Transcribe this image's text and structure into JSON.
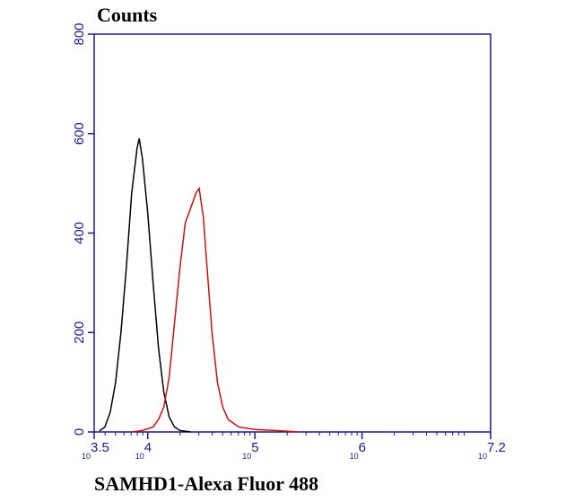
{
  "chart_data": {
    "type": "line",
    "title": "Counts",
    "x_label": "SAMHD1-Alexa Fluor 488",
    "xscale": "log",
    "tick_base": "10",
    "xlim": [
      3162.28,
      15848932
    ],
    "xticks": [
      {
        "value": 3162.28,
        "label": "3.5"
      },
      {
        "value": 10000,
        "label": "4"
      },
      {
        "value": 100000,
        "label": "5"
      },
      {
        "value": 1000000,
        "label": "6"
      },
      {
        "value": 15848932,
        "label": "7.2"
      }
    ],
    "ylim": [
      0,
      800
    ],
    "yticks": [
      0,
      200,
      400,
      600,
      800
    ],
    "series": [
      {
        "color": "#000000",
        "x": [
          3548,
          3981,
          4467,
          5012,
          5623,
          6310,
          7079,
          7943,
          8318,
          8913,
          10000,
          11220,
          12589,
          14125,
          15849,
          17783,
          19953,
          25119
        ],
        "values": [
          2,
          10,
          40,
          100,
          200,
          330,
          480,
          570,
          590,
          550,
          440,
          300,
          170,
          80,
          30,
          10,
          3,
          0
        ]
      },
      {
        "color": "#cc1111",
        "x": [
          7079,
          8913,
          11220,
          12589,
          14125,
          15849,
          17783,
          19953,
          22387,
          25119,
          28184,
          30200,
          33113,
          35481,
          39811,
          44668,
          50119,
          56234,
          70795,
          100000,
          158489,
          251189
        ],
        "values": [
          0,
          3,
          10,
          25,
          50,
          110,
          220,
          330,
          420,
          450,
          480,
          490,
          430,
          340,
          200,
          100,
          50,
          25,
          10,
          5,
          3,
          0
        ]
      }
    ]
  }
}
